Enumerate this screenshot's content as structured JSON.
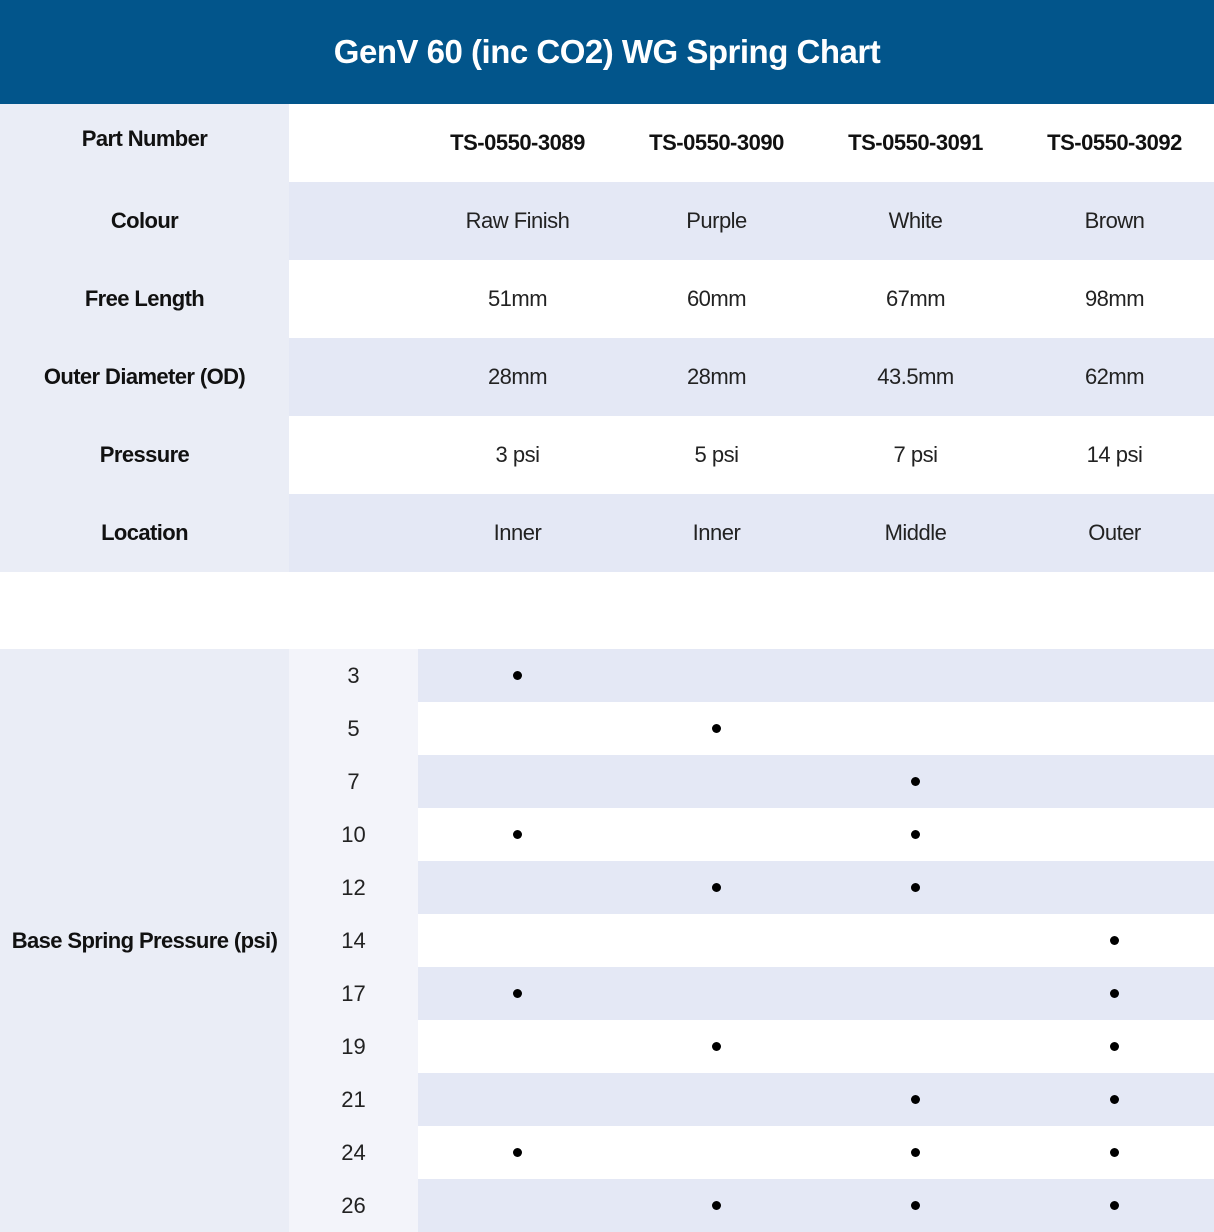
{
  "title": "GenV 60 (inc CO2) WG Spring Chart",
  "colors": {
    "header": "#02558b",
    "row_shade": "#e4e8f5",
    "label_bg": "#eaedf6"
  },
  "specs": [
    {
      "label": "Part Number",
      "values": [
        "TS-0550-3089",
        "TS-0550-3090",
        "TS-0550-3091",
        "TS-0550-3092"
      ]
    },
    {
      "label": "Colour",
      "values": [
        "Raw Finish",
        "Purple",
        "White",
        "Brown"
      ]
    },
    {
      "label": "Free Length",
      "values": [
        "51mm",
        "60mm",
        "67mm",
        "98mm"
      ]
    },
    {
      "label": "Outer Diameter (OD)",
      "values": [
        "28mm",
        "28mm",
        "43.5mm",
        "62mm"
      ]
    },
    {
      "label": "Pressure",
      "values": [
        "3 psi",
        "5 psi",
        "7 psi",
        "14 psi"
      ]
    },
    {
      "label": "Location",
      "values": [
        "Inner",
        "Inner",
        "Middle",
        "Outer"
      ]
    }
  ],
  "base": {
    "label": "Base Spring Pressure (psi)",
    "rows": [
      {
        "psi": "3",
        "springs": [
          true,
          false,
          false,
          false
        ]
      },
      {
        "psi": "5",
        "springs": [
          false,
          true,
          false,
          false
        ]
      },
      {
        "psi": "7",
        "springs": [
          false,
          false,
          true,
          false
        ]
      },
      {
        "psi": "10",
        "springs": [
          true,
          false,
          true,
          false
        ]
      },
      {
        "psi": "12",
        "springs": [
          false,
          true,
          true,
          false
        ]
      },
      {
        "psi": "14",
        "springs": [
          false,
          false,
          false,
          true
        ]
      },
      {
        "psi": "17",
        "springs": [
          true,
          false,
          false,
          true
        ]
      },
      {
        "psi": "19",
        "springs": [
          false,
          true,
          false,
          true
        ]
      },
      {
        "psi": "21",
        "springs": [
          false,
          false,
          true,
          true
        ]
      },
      {
        "psi": "24",
        "springs": [
          true,
          false,
          true,
          true
        ]
      },
      {
        "psi": "26",
        "springs": [
          false,
          true,
          true,
          true
        ]
      }
    ]
  }
}
